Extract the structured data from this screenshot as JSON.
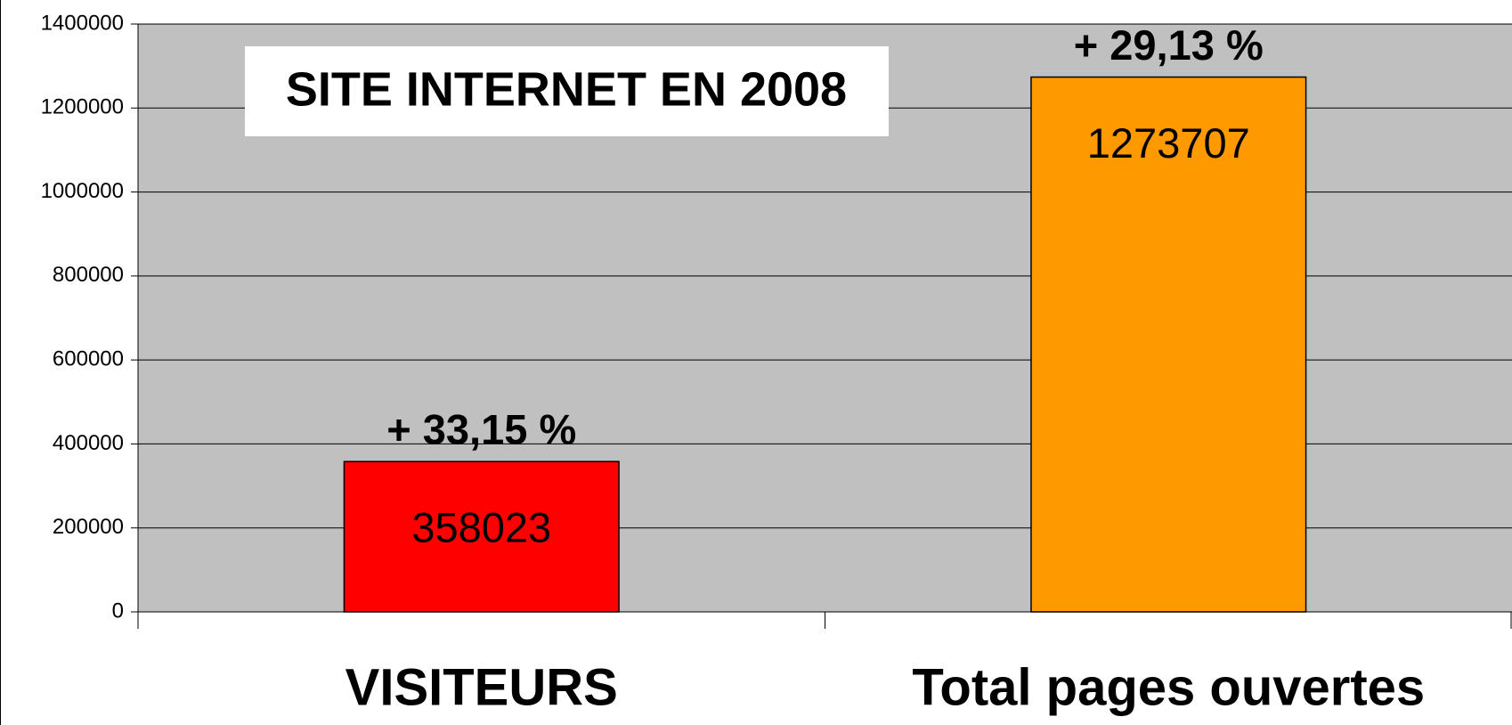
{
  "chart_data": {
    "type": "bar",
    "title": "SITE INTERNET EN 2008",
    "categories": [
      "VISITEURS",
      "Total pages ouvertes"
    ],
    "values": [
      358023,
      1273707
    ],
    "colors": [
      "#ff0000",
      "#ff9900"
    ],
    "annotations": [
      "+ 33,15 %",
      "+ 29,13 %"
    ],
    "ylim": [
      0,
      1400000
    ],
    "yticks": [
      0,
      200000,
      400000,
      600000,
      800000,
      1000000,
      1200000,
      1400000
    ],
    "grid": true
  }
}
